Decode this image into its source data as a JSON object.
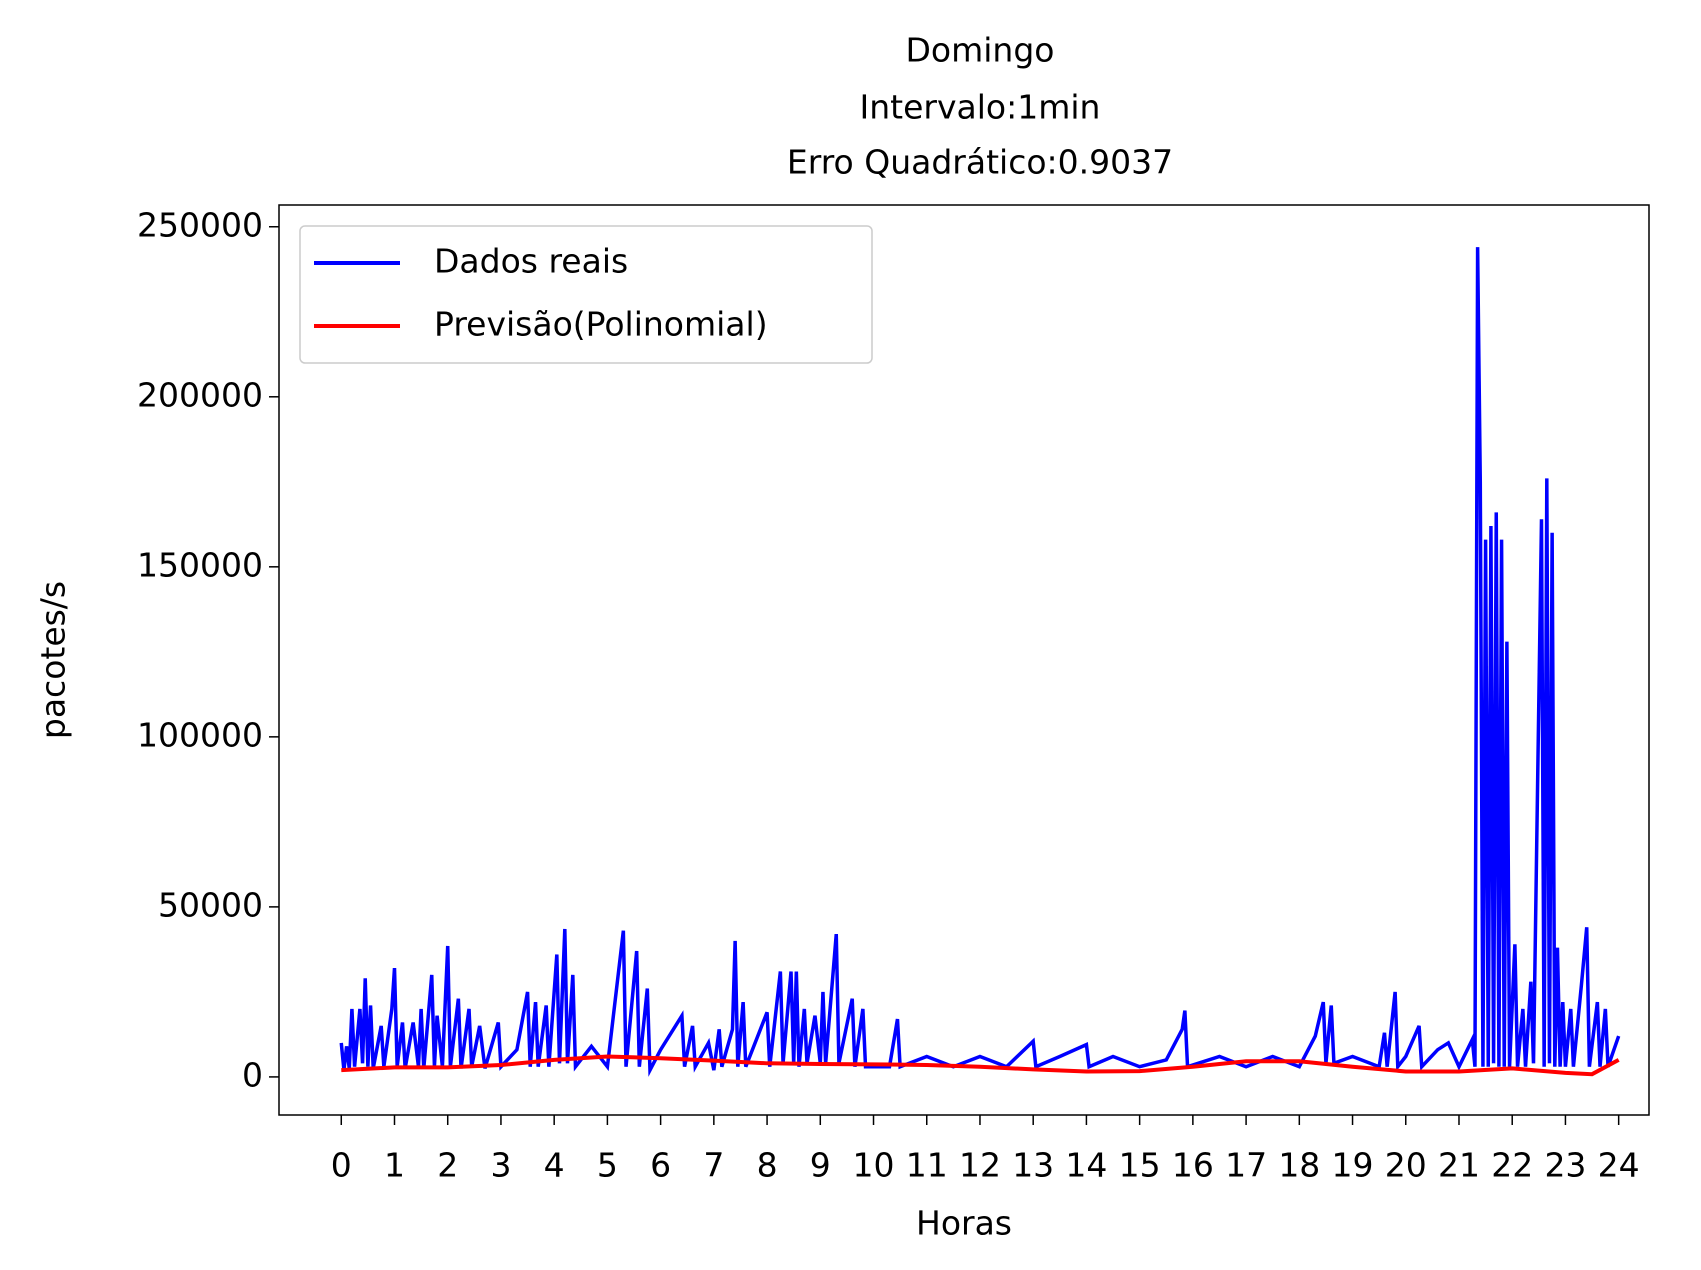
{
  "chart_data": {
    "type": "line",
    "title": [
      "Domingo",
      "Intervalo:1min",
      "Erro Quadrático:0.9037"
    ],
    "x_label": "Horas",
    "y_label": "pacotes/s",
    "xlim": [
      -1.17,
      24.57
    ],
    "ylim": [
      -11200,
      256400
    ],
    "xticks": [
      0,
      1,
      2,
      3,
      4,
      5,
      6,
      7,
      8,
      9,
      10,
      11,
      12,
      13,
      14,
      15,
      16,
      17,
      18,
      19,
      20,
      21,
      22,
      23,
      24
    ],
    "yticks": [
      0,
      50000,
      100000,
      150000,
      200000,
      250000
    ],
    "legend": "upper left",
    "series": [
      {
        "name": "Dados reais",
        "color": "#0000ff",
        "x": [
          0,
          0.05,
          0.1,
          0.15,
          0.2,
          0.25,
          0.35,
          0.4,
          0.45,
          0.5,
          0.55,
          0.6,
          0.75,
          0.8,
          0.95,
          1.0,
          1.05,
          1.15,
          1.2,
          1.35,
          1.45,
          1.5,
          1.55,
          1.7,
          1.75,
          1.8,
          1.9,
          2.0,
          2.05,
          2.2,
          2.25,
          2.4,
          2.45,
          2.6,
          2.7,
          2.95,
          3.0,
          3.3,
          3.5,
          3.55,
          3.65,
          3.7,
          3.85,
          3.9,
          4.05,
          4.1,
          4.2,
          4.25,
          4.35,
          4.4,
          4.7,
          5.0,
          5.3,
          5.35,
          5.55,
          5.6,
          5.75,
          5.8,
          6.0,
          6.4,
          6.45,
          6.6,
          6.65,
          6.9,
          7.0,
          7.1,
          7.15,
          7.35,
          7.4,
          7.45,
          7.55,
          7.6,
          8.0,
          8.05,
          8.25,
          8.3,
          8.45,
          8.5,
          8.55,
          8.6,
          8.7,
          8.75,
          8.9,
          9.0,
          9.05,
          9.1,
          9.3,
          9.35,
          9.6,
          9.65,
          9.8,
          9.85,
          10.3,
          10.45,
          10.5,
          11.0,
          11.5,
          12.0,
          12.5,
          13.0,
          13.05,
          13.5,
          14.0,
          14.05,
          14.5,
          15.0,
          15.5,
          15.8,
          15.85,
          15.9,
          16.5,
          17.0,
          17.5,
          18.0,
          18.3,
          18.45,
          18.5,
          18.6,
          18.65,
          19.0,
          19.5,
          19.6,
          19.65,
          19.8,
          19.85,
          20.0,
          20.25,
          20.3,
          20.6,
          20.8,
          21.0,
          21.25,
          21.3,
          21.35,
          21.4,
          21.45,
          21.5,
          21.55,
          21.6,
          21.65,
          21.7,
          21.75,
          21.8,
          21.85,
          21.9,
          21.95,
          22.05,
          22.1,
          22.2,
          22.25,
          22.35,
          22.4,
          22.55,
          22.6,
          22.65,
          22.7,
          22.75,
          22.8,
          22.85,
          22.9,
          22.95,
          23.0,
          23.1,
          23.15,
          23.3,
          23.4,
          23.45,
          23.6,
          23.65,
          23.75,
          23.8,
          24.0
        ],
        "values": [
          10000,
          2000,
          9000,
          2500,
          20000,
          3000,
          20000,
          4000,
          29000,
          3000,
          21000,
          2500,
          15000,
          3000,
          20000,
          32000,
          3000,
          16000,
          2500,
          16000,
          3000,
          20000,
          2500,
          30000,
          3000,
          18000,
          3000,
          38500,
          3000,
          23000,
          2500,
          20000,
          3000,
          15000,
          2500,
          16000,
          3000,
          8000,
          25000,
          3000,
          22000,
          3000,
          21000,
          3000,
          36000,
          4000,
          43500,
          4000,
          30000,
          3000,
          9000,
          3000,
          43000,
          3000,
          37000,
          3000,
          26000,
          2000,
          8000,
          18000,
          3000,
          15000,
          3000,
          10000,
          2000,
          14000,
          3000,
          14000,
          40000,
          3000,
          22000,
          3000,
          19000,
          3000,
          31000,
          4000,
          31000,
          4000,
          31000,
          3000,
          20000,
          4000,
          18000,
          4000,
          25000,
          4000,
          42000,
          4000,
          23000,
          3000,
          20000,
          3000,
          3000,
          17000,
          3000,
          6000,
          3000,
          6000,
          3000,
          10500,
          3000,
          6000,
          9500,
          3000,
          6000,
          3000,
          5000,
          14000,
          19500,
          3000,
          6000,
          3000,
          6000,
          3000,
          12000,
          22000,
          4000,
          21000,
          4000,
          6000,
          3000,
          13000,
          3000,
          25000,
          3000,
          6000,
          15000,
          3000,
          8000,
          10000,
          3000,
          11000,
          3000,
          244000,
          175000,
          3000,
          158000,
          3000,
          162000,
          4000,
          166000,
          3000,
          158000,
          3000,
          128000,
          3000,
          39000,
          3000,
          20000,
          3000,
          28000,
          4000,
          164000,
          3000,
          176000,
          4000,
          160000,
          3000,
          38000,
          3000,
          22000,
          3000,
          20000,
          3000,
          27000,
          44000,
          3000,
          22000,
          3000,
          20000,
          3000,
          12000
        ]
      },
      {
        "name": "Previsão(Polinomial)",
        "color": "#ff0000",
        "x": [
          0,
          1,
          2,
          3,
          4,
          5,
          6,
          7,
          8,
          9,
          10,
          11,
          12,
          13,
          14,
          15,
          16,
          17,
          18,
          19,
          20,
          21,
          22,
          23,
          23.5,
          24
        ],
        "values": [
          2000,
          2800,
          2800,
          3500,
          5000,
          6000,
          5500,
          4800,
          4000,
          3800,
          3700,
          3500,
          3000,
          2200,
          1600,
          1700,
          3000,
          4600,
          4600,
          3000,
          1600,
          1600,
          2500,
          1200,
          800,
          5000
        ]
      }
    ]
  }
}
